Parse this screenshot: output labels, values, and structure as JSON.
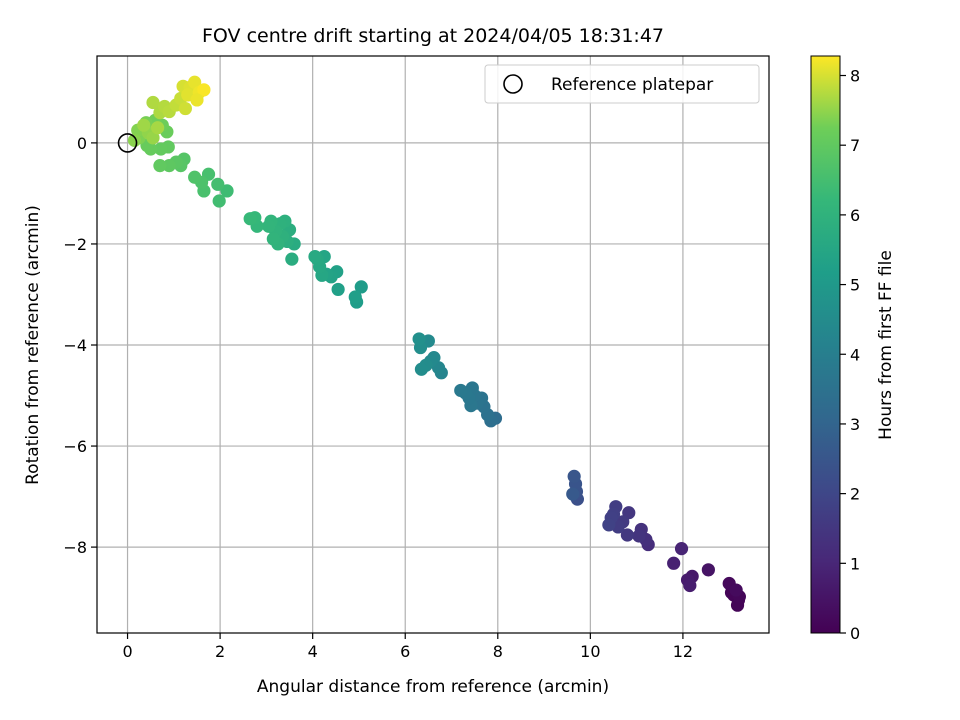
{
  "chart_data": {
    "type": "scatter",
    "title": "FOV centre drift starting at 2024/04/05 18:31:47",
    "xlabel": "Angular distance from reference (arcmin)",
    "ylabel": "Rotation from reference (arcmin)",
    "xlim": [
      -0.66,
      13.86
    ],
    "ylim": [
      -9.7,
      1.72
    ],
    "xticks": [
      0,
      2,
      4,
      6,
      8,
      10,
      12
    ],
    "yticks": [
      0,
      -2,
      -4,
      -6,
      -8
    ],
    "grid": true,
    "legend": {
      "placement": "upper right",
      "entries": [
        "Reference platepar"
      ]
    },
    "reference_point": {
      "x": 0,
      "y": 0
    },
    "colorbar": {
      "label": "Hours from first FF file",
      "range": [
        0,
        8.28
      ],
      "ticks": [
        0,
        1,
        2,
        3,
        4,
        5,
        6,
        7,
        8
      ],
      "colormap": "viridis"
    },
    "points": [
      [
        13.2,
        -9.05,
        0.02
      ],
      [
        13.1,
        -8.95,
        0.05
      ],
      [
        13.05,
        -8.9,
        0.08
      ],
      [
        13.18,
        -9.15,
        0.1
      ],
      [
        13.22,
        -8.98,
        0.12
      ],
      [
        13.0,
        -8.72,
        0.2
      ],
      [
        13.15,
        -8.85,
        0.25
      ],
      [
        12.55,
        -8.45,
        0.5
      ],
      [
        12.2,
        -8.58,
        0.6
      ],
      [
        12.1,
        -8.65,
        0.7
      ],
      [
        12.15,
        -8.76,
        0.75
      ],
      [
        11.8,
        -8.32,
        0.85
      ],
      [
        11.97,
        -8.03,
        0.95
      ],
      [
        11.25,
        -7.95,
        1.2
      ],
      [
        11.2,
        -7.85,
        1.3
      ],
      [
        11.1,
        -7.65,
        1.35
      ],
      [
        11.05,
        -7.78,
        1.4
      ],
      [
        10.83,
        -7.32,
        1.5
      ],
      [
        10.8,
        -7.76,
        1.55
      ],
      [
        10.7,
        -7.5,
        1.6
      ],
      [
        10.6,
        -7.6,
        1.65
      ],
      [
        10.55,
        -7.2,
        1.7
      ],
      [
        10.5,
        -7.35,
        1.75
      ],
      [
        10.45,
        -7.42,
        1.8
      ],
      [
        10.4,
        -7.56,
        1.85
      ],
      [
        9.72,
        -7.05,
        2.3
      ],
      [
        9.7,
        -6.9,
        2.4
      ],
      [
        9.68,
        -6.75,
        2.45
      ],
      [
        9.65,
        -6.6,
        2.5
      ],
      [
        9.62,
        -6.95,
        2.6
      ],
      [
        7.95,
        -5.45,
        3.3
      ],
      [
        7.85,
        -5.5,
        3.4
      ],
      [
        7.78,
        -5.38,
        3.45
      ],
      [
        7.7,
        -5.22,
        3.5
      ],
      [
        7.65,
        -5.05,
        3.55
      ],
      [
        7.55,
        -5.15,
        3.6
      ],
      [
        7.5,
        -5.0,
        3.62
      ],
      [
        7.45,
        -4.85,
        3.65
      ],
      [
        7.42,
        -5.2,
        3.7
      ],
      [
        7.38,
        -5.05,
        3.72
      ],
      [
        7.3,
        -4.95,
        3.75
      ],
      [
        7.2,
        -4.9,
        3.8
      ],
      [
        6.78,
        -4.55,
        4.2
      ],
      [
        6.72,
        -4.45,
        4.3
      ],
      [
        6.62,
        -4.25,
        4.35
      ],
      [
        6.55,
        -4.32,
        4.4
      ],
      [
        6.5,
        -3.92,
        4.45
      ],
      [
        6.45,
        -4.4,
        4.5
      ],
      [
        6.35,
        -4.48,
        4.55
      ],
      [
        6.33,
        -4.05,
        4.6
      ],
      [
        6.3,
        -3.88,
        4.65
      ],
      [
        5.05,
        -2.85,
        5.1
      ],
      [
        4.95,
        -3.15,
        5.15
      ],
      [
        4.92,
        -3.05,
        5.2
      ],
      [
        4.55,
        -2.9,
        5.25
      ],
      [
        4.52,
        -2.55,
        5.3
      ],
      [
        4.4,
        -2.65,
        5.35
      ],
      [
        4.3,
        -2.6,
        5.4
      ],
      [
        4.25,
        -2.25,
        5.45
      ],
      [
        4.2,
        -2.62,
        5.5
      ],
      [
        4.15,
        -2.45,
        5.55
      ],
      [
        4.1,
        -2.3,
        5.6
      ],
      [
        4.05,
        -2.25,
        5.65
      ],
      [
        3.6,
        -2.0,
        5.7
      ],
      [
        3.55,
        -2.3,
        5.75
      ],
      [
        3.5,
        -1.72,
        5.8
      ],
      [
        3.45,
        -1.95,
        5.85
      ],
      [
        3.4,
        -1.55,
        5.9
      ],
      [
        3.35,
        -1.85,
        5.92
      ],
      [
        3.3,
        -1.6,
        5.95
      ],
      [
        3.25,
        -2.0,
        6.0
      ],
      [
        3.2,
        -1.75,
        6.02
      ],
      [
        3.15,
        -1.9,
        6.05
      ],
      [
        3.1,
        -1.55,
        6.08
      ],
      [
        3.05,
        -1.65,
        6.1
      ],
      [
        2.8,
        -1.65,
        6.15
      ],
      [
        2.75,
        -1.48,
        6.2
      ],
      [
        2.65,
        -1.5,
        6.25
      ],
      [
        2.15,
        -0.95,
        6.4
      ],
      [
        1.98,
        -1.15,
        6.45
      ],
      [
        1.95,
        -0.82,
        6.5
      ],
      [
        1.75,
        -0.62,
        6.55
      ],
      [
        1.65,
        -0.95,
        6.6
      ],
      [
        1.6,
        -0.78,
        6.65
      ],
      [
        1.45,
        -0.68,
        6.7
      ],
      [
        1.22,
        -0.32,
        6.8
      ],
      [
        1.15,
        -0.45,
        6.85
      ],
      [
        1.05,
        -0.38,
        6.9
      ],
      [
        0.9,
        -0.45,
        6.95
      ],
      [
        0.7,
        -0.45,
        7.0
      ],
      [
        0.88,
        -0.08,
        7.02
      ],
      [
        0.72,
        -0.12,
        7.05
      ],
      [
        0.5,
        -0.12,
        7.1
      ],
      [
        0.42,
        -0.05,
        7.12
      ],
      [
        0.85,
        0.22,
        7.15
      ],
      [
        0.75,
        0.35,
        7.2
      ],
      [
        0.6,
        0.45,
        7.25
      ],
      [
        0.4,
        0.4,
        7.3
      ],
      [
        0.25,
        0.1,
        7.35
      ],
      [
        0.22,
        0.25,
        7.4
      ],
      [
        0.15,
        0.05,
        7.45
      ],
      [
        0.45,
        0.2,
        7.5
      ],
      [
        0.55,
        0.1,
        7.55
      ],
      [
        0.35,
        0.35,
        7.6
      ],
      [
        0.65,
        0.3,
        7.65
      ],
      [
        0.7,
        0.6,
        7.7
      ],
      [
        0.55,
        0.8,
        7.72
      ],
      [
        0.8,
        0.72,
        7.75
      ],
      [
        0.9,
        0.62,
        7.78
      ],
      [
        1.05,
        0.75,
        7.85
      ],
      [
        1.15,
        0.88,
        7.9
      ],
      [
        1.25,
        0.68,
        7.95
      ],
      [
        1.2,
        1.12,
        8.0
      ],
      [
        1.35,
        1.1,
        8.05
      ],
      [
        1.3,
        0.95,
        8.08
      ],
      [
        1.45,
        1.2,
        8.12
      ],
      [
        1.55,
        1.0,
        8.18
      ],
      [
        1.65,
        1.05,
        8.25
      ],
      [
        1.5,
        0.85,
        8.15
      ]
    ]
  }
}
